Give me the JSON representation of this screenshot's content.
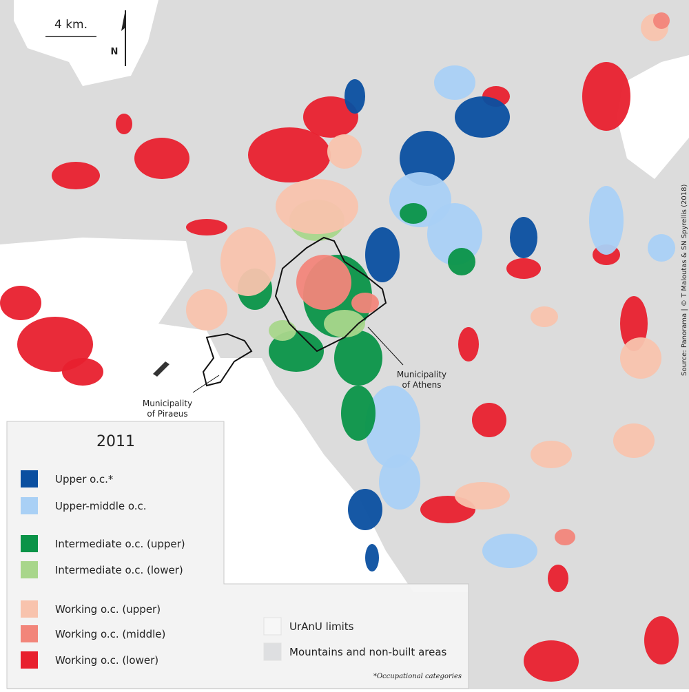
{
  "scale_bar": {
    "label": "4 km."
  },
  "north_label": "N",
  "places": [
    {
      "lines": [
        "Municipality",
        "of Piraeus"
      ]
    },
    {
      "lines": [
        "Municipality",
        "of Athens"
      ]
    }
  ],
  "legend": {
    "title": "2011",
    "items": [
      {
        "label": "Upper o.c.*",
        "color": "#0a4fa0"
      },
      {
        "label": "Upper-middle o.c.",
        "color": "#a9d0f5"
      },
      {
        "label": "Intermediate o.c. (upper)",
        "color": "#0a9348"
      },
      {
        "label": "Intermediate o.c. (lower)",
        "color": "#a8d68b"
      },
      {
        "label": "Working o.c. (upper)",
        "color": "#f8c3ad"
      },
      {
        "label": "Working o.c. (middle)",
        "color": "#f2857a"
      },
      {
        "label": "Working o.c. (lower)",
        "color": "#e8202e"
      }
    ],
    "extra": [
      {
        "label": "UrAnU limits",
        "color": "#f7f7f7"
      },
      {
        "label": "Mountains and non-built areas",
        "color": "#dedfe1"
      }
    ],
    "footnote": "*Occupational categories"
  },
  "source": "Source: Panorama | © T Maloutas & SN Spyrellis (2018)"
}
